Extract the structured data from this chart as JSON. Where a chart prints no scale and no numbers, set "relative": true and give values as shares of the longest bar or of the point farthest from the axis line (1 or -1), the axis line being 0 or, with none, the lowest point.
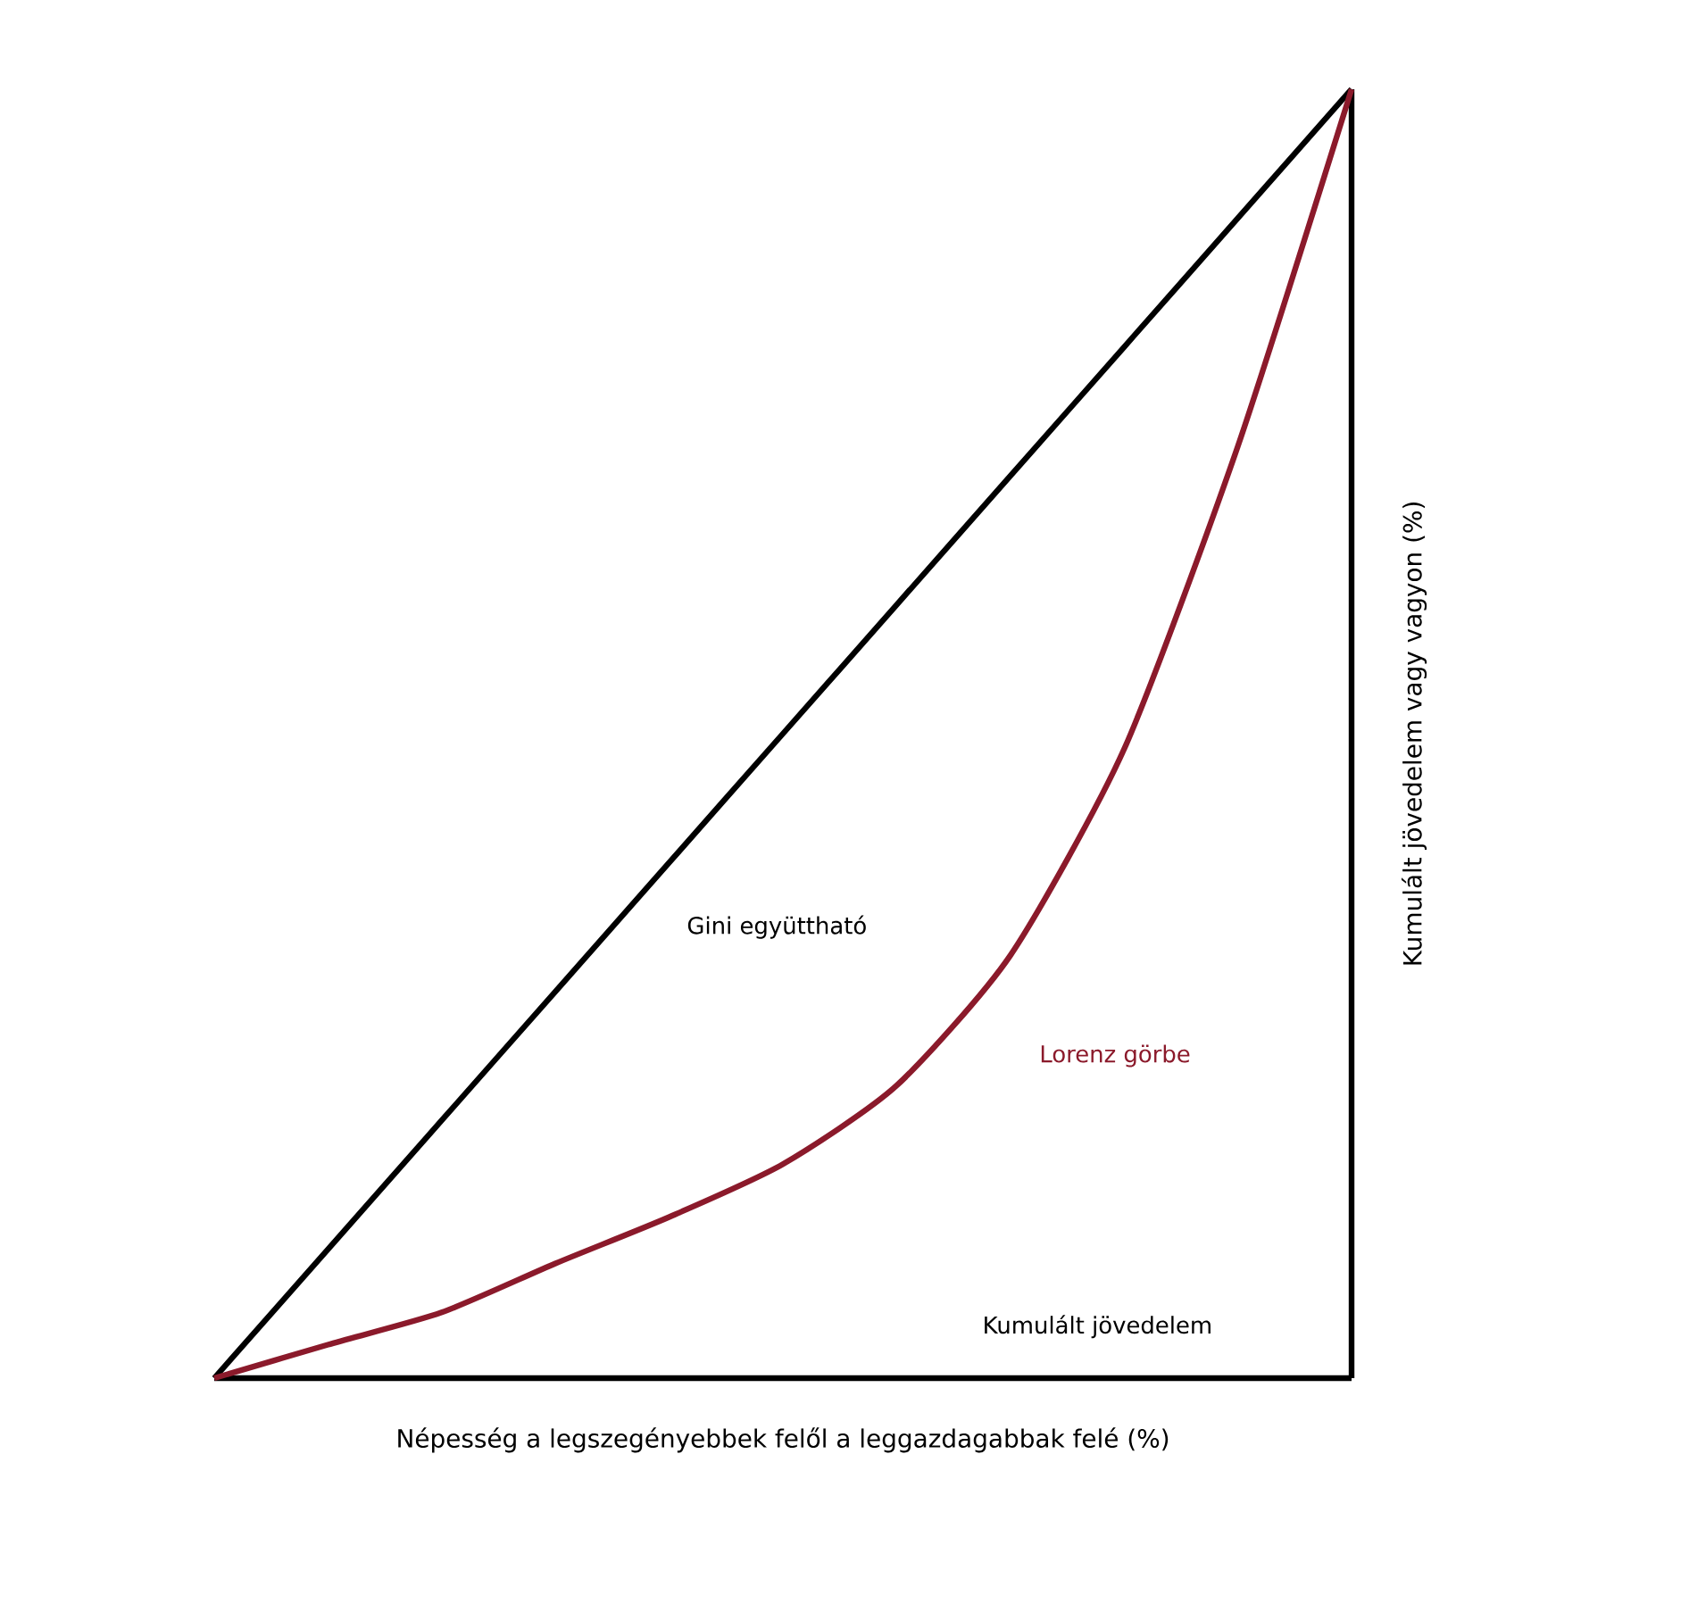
{
  "chart_data": {
    "type": "line",
    "relative": true,
    "xlabel": "Népesség a legszegényebbek felől a leggazdagabbak felé (%)",
    "ylabel": "Kumulált jövedelem vagy vagyon (%)",
    "categories": [
      null,
      null,
      null,
      null,
      null,
      null,
      null,
      null,
      null,
      null,
      null
    ],
    "series": [
      {
        "color": "#000000",
        "values": [
          0,
          0.1,
          0.2,
          0.3,
          0.4,
          0.5,
          0.6,
          0.7,
          0.8,
          0.9,
          1
        ]
      },
      {
        "name": "Lorenz görbe",
        "color": "#8b1a2b",
        "values": [
          0,
          0.026,
          0.051,
          0.089,
          0.125,
          0.166,
          0.227,
          0.328,
          0.488,
          0.723,
          1
        ]
      }
    ],
    "annotations": [
      "Gini együttható",
      "Kumulált jövedelem"
    ],
    "marker": "none",
    "line_style": "solid"
  }
}
